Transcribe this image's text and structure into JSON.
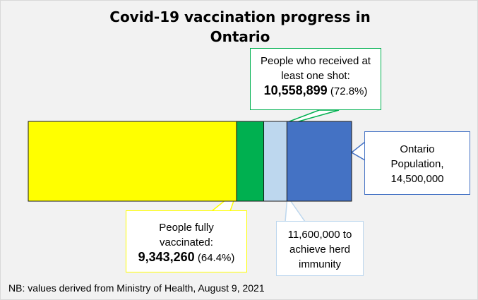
{
  "chart_data": {
    "type": "bar",
    "title": "Covid-19 vaccination progress in Ontario",
    "orientation": "horizontal-stacked",
    "total": 14500000,
    "segments": [
      {
        "name": "People fully vaccinated",
        "value": 9343260,
        "percent": "64.4%",
        "color": "#ffff00"
      },
      {
        "name": "People who received at least one shot",
        "value": 10558899,
        "percent": "72.8%",
        "color": "#00b050"
      },
      {
        "name": "herd immunity",
        "value": 11600000,
        "color": "#bdd7ee"
      },
      {
        "name": "Ontario Population",
        "value": 14500000,
        "color": "#4472c4"
      }
    ]
  },
  "callouts": {
    "one_shot": {
      "line1": "People who received at",
      "line2": "least one shot:",
      "value": "10,558,899",
      "pct": "(72.8%)",
      "border": "#00b050"
    },
    "full": {
      "line1": "People fully",
      "line2": "vaccinated:",
      "value": "9,343,260",
      "pct": "(64.4%)",
      "border": "#ffff00"
    },
    "herd": {
      "line1": "11,600,000 to",
      "line2": "achieve herd",
      "line3": "immunity",
      "border": "#bdd7ee"
    },
    "population": {
      "line1": "Ontario",
      "line2": "Population,",
      "line3": "14,500,000",
      "border": "#4472c4"
    }
  },
  "note": "NB: values derived from Ministry of Health, August 9, 2021"
}
